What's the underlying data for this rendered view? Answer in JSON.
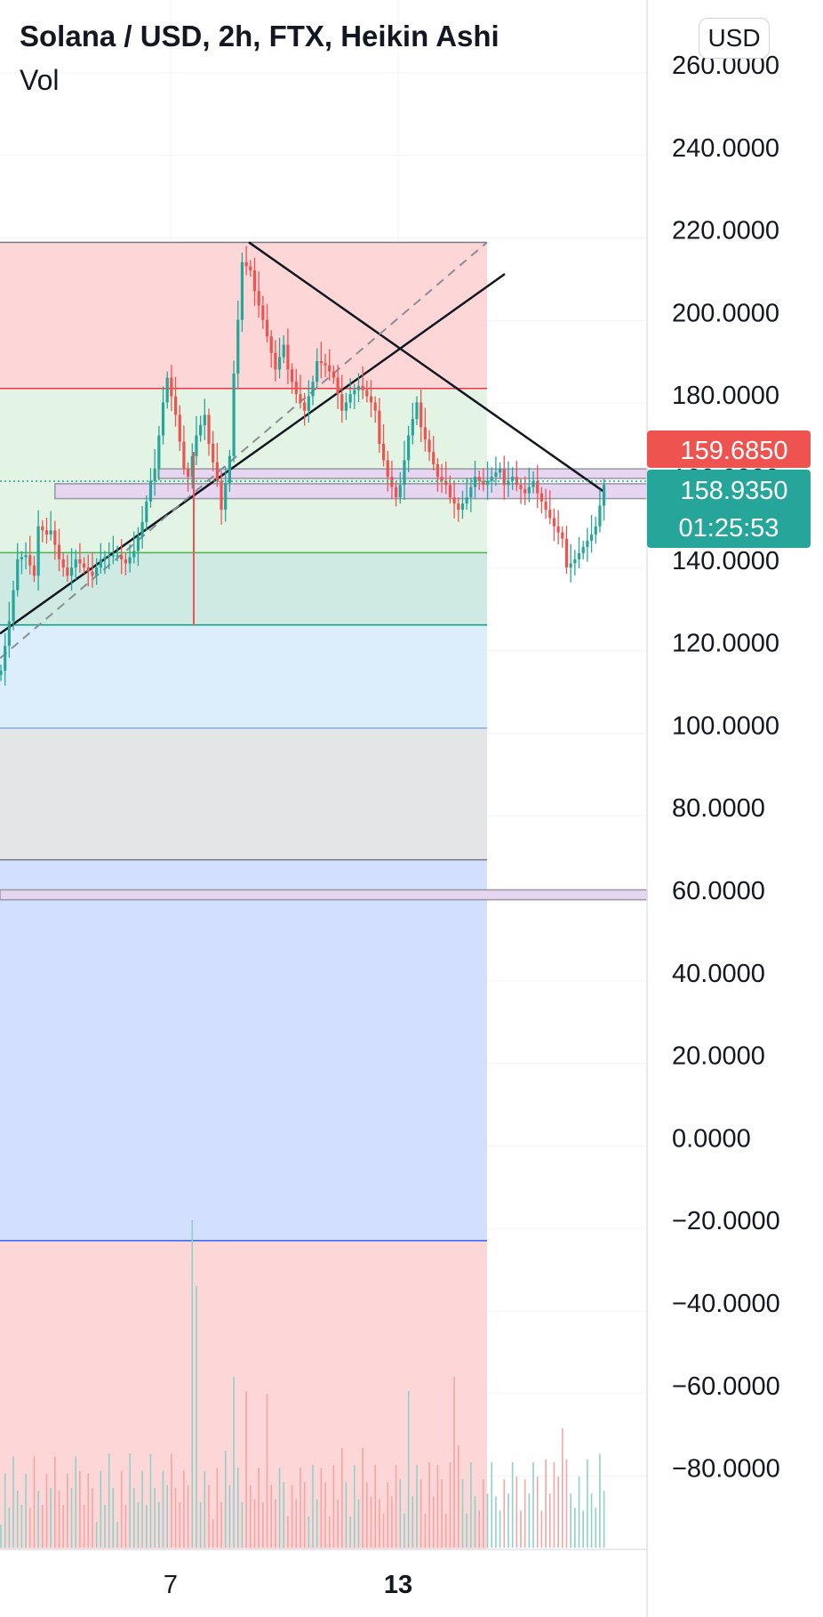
{
  "header": {
    "title": "Solana / USD, 2h, FTX, Heikin Ashi",
    "volume_label": "Vol",
    "currency_button": "USD"
  },
  "chart_data": {
    "type": "candlestick",
    "title": "Solana / USD, 2h, FTX, Heikin Ashi",
    "price_axis": {
      "range": [
        -97,
        268
      ],
      "ticks": [
        "260.0000",
        "240.0000",
        "220.0000",
        "200.0000",
        "180.0000",
        "160.0000",
        "140.0000",
        "120.0000",
        "100.0000",
        "80.0000",
        "60.0000",
        "40.0000",
        "20.0000",
        "0.0000",
        "−20.0000",
        "−40.0000",
        "−60.0000",
        "−80.0000"
      ],
      "tick_values": [
        260,
        240,
        220,
        200,
        180,
        160,
        140,
        120,
        100,
        80,
        60,
        40,
        20,
        0,
        -20,
        -40,
        -60,
        -80
      ]
    },
    "time_axis": {
      "labels": [
        "7",
        "13"
      ],
      "bold": [
        false,
        true
      ]
    },
    "price_labels": [
      {
        "value": 159.685,
        "text": "159.6850",
        "color": "#ef5350"
      },
      {
        "value": 158.935,
        "text": "158.9350",
        "countdown": "01:25:53",
        "color": "#26a69a"
      }
    ],
    "levels": {
      "top": 216.8,
      "red_line": 181.4,
      "green_line": 141.6,
      "teal_line": 124.1,
      "blue_line": 99.1,
      "gray_bottom": 67.2,
      "navy_line": -25.1
    },
    "zones": [
      {
        "from": 159.6,
        "to": 161.9,
        "until": "edge"
      },
      {
        "from": 154.7,
        "to": 158.3,
        "start_index": 13,
        "until": "edge"
      },
      {
        "from": 57.5,
        "to": 59.9,
        "until": "edge"
      }
    ],
    "candle_path": [
      [
        0,
        113
      ],
      [
        2,
        125
      ],
      [
        4,
        140
      ],
      [
        6,
        141
      ],
      [
        8,
        136
      ],
      [
        9,
        148
      ],
      [
        11,
        146
      ],
      [
        12,
        147
      ],
      [
        14,
        140
      ],
      [
        16,
        136
      ],
      [
        18,
        140
      ],
      [
        20,
        138
      ],
      [
        22,
        136
      ],
      [
        24,
        140
      ],
      [
        26,
        141
      ],
      [
        28,
        141
      ],
      [
        30,
        139
      ],
      [
        32,
        142
      ],
      [
        34,
        149
      ],
      [
        36,
        159
      ],
      [
        37,
        162
      ],
      [
        39,
        178
      ],
      [
        40,
        184
      ],
      [
        42,
        175
      ],
      [
        44,
        162
      ],
      [
        45,
        160
      ],
      [
        47,
        170
      ],
      [
        49,
        175
      ],
      [
        50,
        168
      ],
      [
        52,
        159
      ],
      [
        53,
        152
      ],
      [
        55,
        165
      ],
      [
        56,
        185
      ],
      [
        57,
        198
      ],
      [
        58,
        212
      ],
      [
        60,
        210
      ],
      [
        61,
        205
      ],
      [
        63,
        198
      ],
      [
        65,
        190
      ],
      [
        66,
        186
      ],
      [
        68,
        192
      ],
      [
        69,
        186
      ],
      [
        71,
        180
      ],
      [
        73,
        176
      ],
      [
        75,
        183
      ],
      [
        76,
        188
      ],
      [
        78,
        187
      ],
      [
        80,
        184
      ],
      [
        82,
        176
      ],
      [
        84,
        180
      ],
      [
        86,
        182
      ],
      [
        87,
        181
      ],
      [
        89,
        178
      ],
      [
        90,
        176
      ],
      [
        91,
        168
      ],
      [
        93,
        160
      ],
      [
        95,
        155
      ],
      [
        96,
        158
      ],
      [
        98,
        170
      ],
      [
        100,
        178
      ],
      [
        101,
        172
      ],
      [
        103,
        166
      ],
      [
        105,
        160
      ],
      [
        107,
        158
      ],
      [
        108,
        155
      ],
      [
        110,
        152
      ],
      [
        112,
        155
      ],
      [
        114,
        160
      ],
      [
        116,
        158
      ],
      [
        118,
        160
      ],
      [
        120,
        162
      ],
      [
        121,
        158
      ],
      [
        123,
        160
      ],
      [
        124,
        158
      ],
      [
        126,
        156
      ],
      [
        128,
        159
      ],
      [
        129,
        156
      ],
      [
        131,
        152
      ],
      [
        133,
        148
      ],
      [
        135,
        145
      ],
      [
        136,
        138
      ],
      [
        138,
        140
      ],
      [
        140,
        143
      ],
      [
        142,
        146
      ],
      [
        143,
        148
      ],
      [
        145,
        158
      ]
    ],
    "volume": {
      "range": [
        0,
        120
      ],
      "spikes": [
        [
          46,
          115
        ],
        [
          47,
          92
        ],
        [
          56,
          60
        ],
        [
          59,
          55
        ],
        [
          64,
          54
        ],
        [
          98,
          55
        ],
        [
          109,
          60
        ],
        [
          135,
          42
        ],
        [
          144,
          33
        ]
      ]
    }
  }
}
